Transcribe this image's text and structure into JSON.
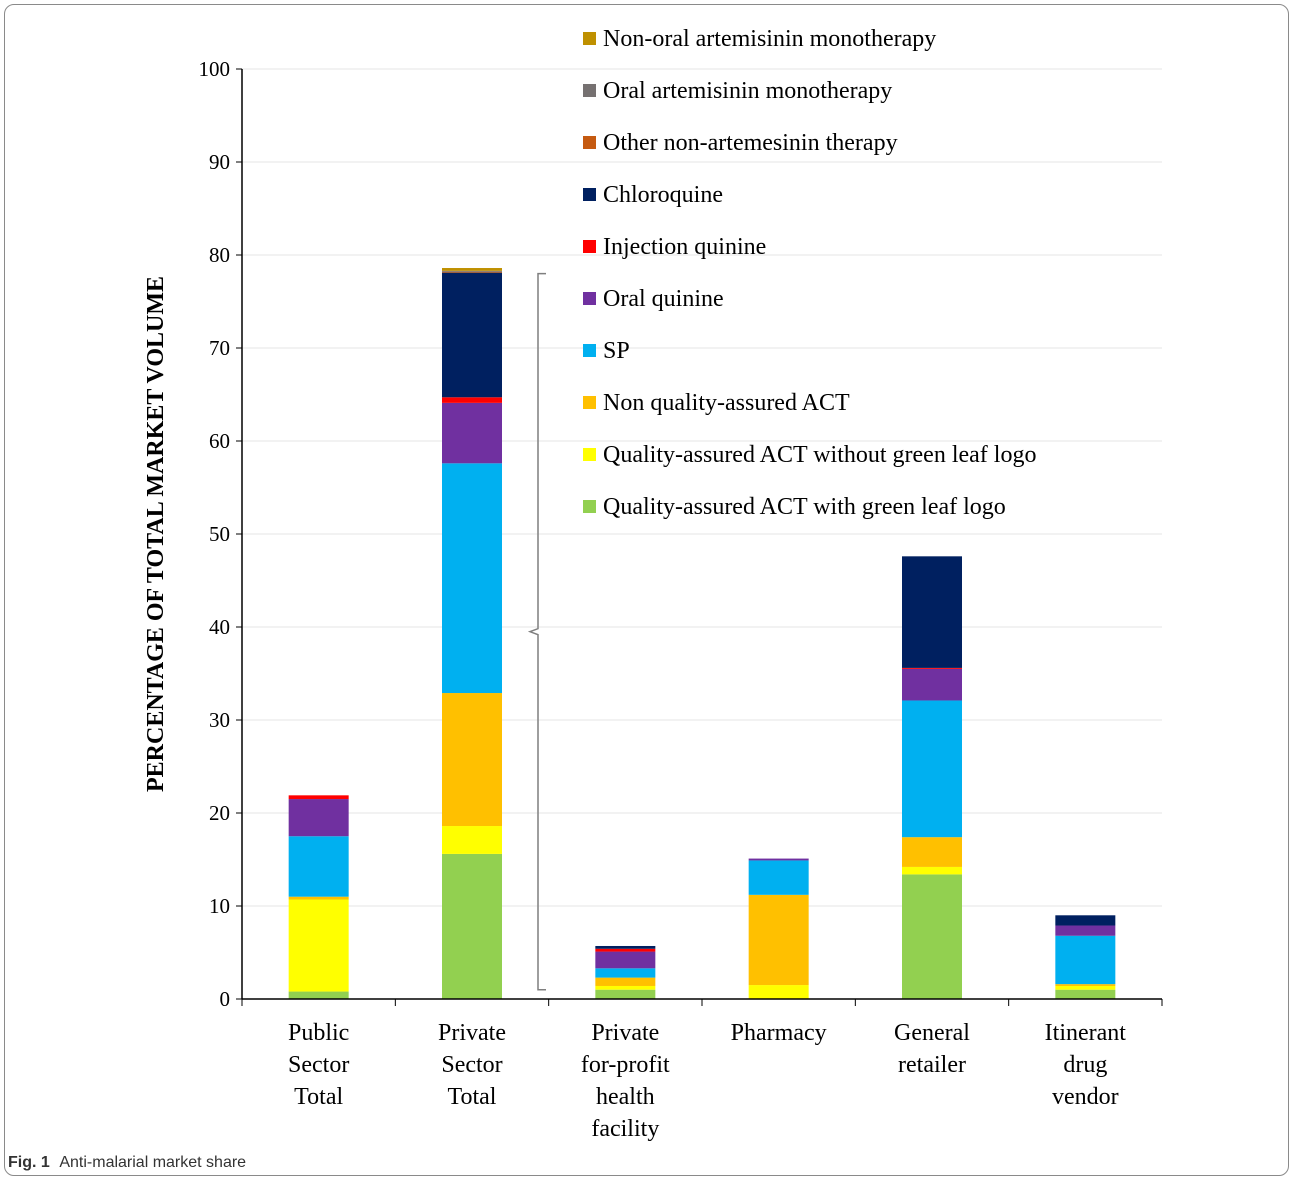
{
  "caption": {
    "label": "Fig. 1",
    "text": "Anti-malarial market share"
  },
  "chart_data": {
    "type": "bar",
    "stacked": true,
    "ylabel": "PERCENTAGE OF TOTAL MARKET VOLUME",
    "xlabel": "",
    "ylim": [
      0,
      100
    ],
    "yticks": [
      0,
      10,
      20,
      30,
      40,
      50,
      60,
      70,
      80,
      90,
      100
    ],
    "grid": true,
    "legend": "top-right",
    "categories": [
      [
        "Public",
        "Sector",
        "Total"
      ],
      [
        "Private",
        "Sector",
        "Total"
      ],
      [
        "Private",
        "for-profit",
        "health",
        "facility"
      ],
      [
        "Pharmacy"
      ],
      [
        "General",
        "retailer"
      ],
      [
        "Itinerant",
        "drug",
        "vendor"
      ]
    ],
    "series": [
      {
        "name": "Quality-assured ACT with green leaf logo",
        "color": "#92D050",
        "values": [
          0.8,
          15.6,
          1.0,
          0.0,
          13.4,
          1.0
        ]
      },
      {
        "name": "Quality-assured ACT without green leaf logo",
        "color": "#FFFF00",
        "values": [
          9.9,
          3.0,
          0.4,
          1.5,
          0.8,
          0.4
        ]
      },
      {
        "name": "Non quality-assured ACT",
        "color": "#FFC000",
        "values": [
          0.3,
          14.3,
          0.9,
          9.7,
          3.2,
          0.2
        ]
      },
      {
        "name": "SP",
        "color": "#00B0F0",
        "values": [
          6.5,
          24.7,
          1.0,
          3.7,
          14.7,
          5.2
        ]
      },
      {
        "name": "Oral quinine",
        "color": "#7030A0",
        "values": [
          4.0,
          6.5,
          1.8,
          0.2,
          3.4,
          1.1
        ]
      },
      {
        "name": "Injection quinine",
        "color": "#FF0000",
        "values": [
          0.4,
          0.6,
          0.3,
          0.0,
          0.1,
          0.0
        ]
      },
      {
        "name": "Chloroquine",
        "color": "#002060",
        "values": [
          0.0,
          13.4,
          0.3,
          0.0,
          12.0,
          1.1
        ]
      },
      {
        "name": "Other non-artemesinin therapy",
        "color": "#C55A11",
        "values": [
          0.0,
          0.1,
          0.0,
          0.0,
          0.0,
          0.0
        ]
      },
      {
        "name": "Oral artemisinin monotherapy",
        "color": "#767171",
        "values": [
          0.0,
          0.1,
          0.0,
          0.0,
          0.0,
          0.0
        ]
      },
      {
        "name": "Non-oral artemisinin monotherapy",
        "color": "#BF9000",
        "values": [
          0.0,
          0.3,
          0.0,
          0.0,
          0.0,
          0.0
        ]
      }
    ]
  }
}
